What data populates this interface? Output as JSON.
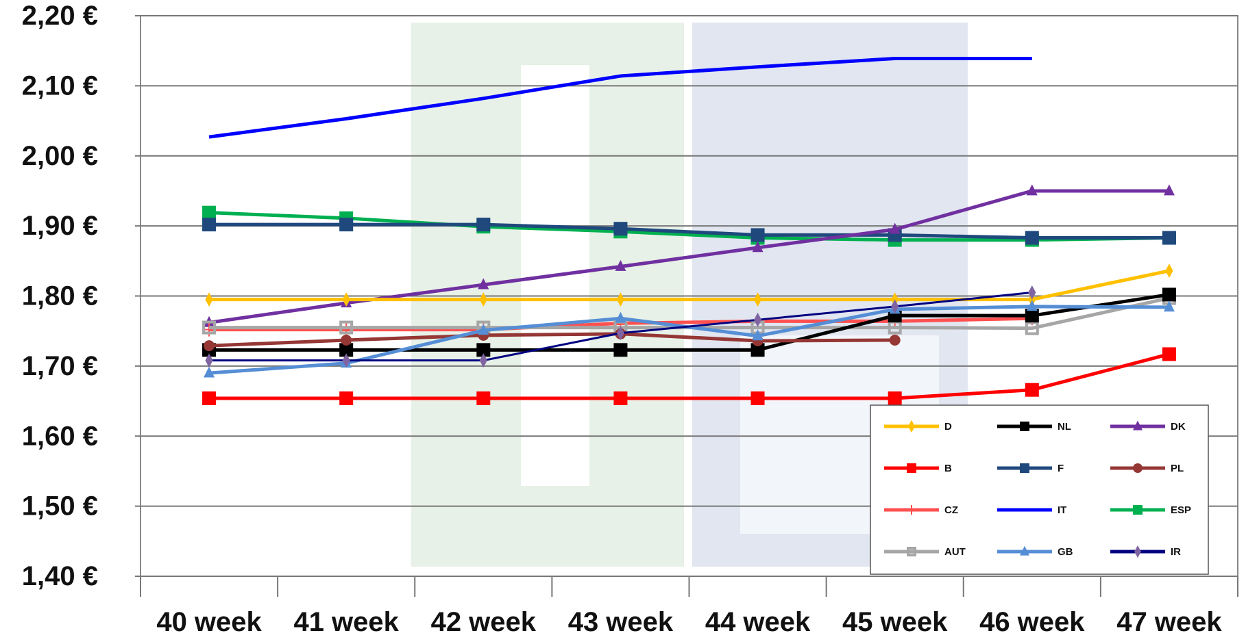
{
  "chart_data": {
    "type": "line",
    "categories": [
      "40 week",
      "41 week",
      "42 week",
      "43 week",
      "44 week",
      "45 week",
      "46 week",
      "47 week"
    ],
    "ylim": [
      1.4,
      2.2
    ],
    "yticks": [
      "1,40 €",
      "1,50 €",
      "1,60 €",
      "1,70 €",
      "1,80 €",
      "1,90 €",
      "2,00 €",
      "2,10 €",
      "2,20 €"
    ],
    "ytick_values": [
      1.4,
      1.5,
      1.6,
      1.7,
      1.8,
      1.9,
      2.0,
      2.1,
      2.2
    ],
    "grid": true,
    "legend_position": "bottom-right",
    "series": [
      {
        "name": "D",
        "color": "#FFC000",
        "marker": "diamond",
        "values": [
          1.795,
          1.795,
          1.795,
          1.795,
          1.795,
          1.795,
          1.795,
          1.836
        ]
      },
      {
        "name": "NL",
        "color": "#000000",
        "marker": "square",
        "values": [
          1.723,
          1.723,
          1.723,
          1.723,
          1.723,
          1.772,
          1.772,
          1.802
        ]
      },
      {
        "name": "DK",
        "color": "#7030A0",
        "marker": "triangle",
        "values": [
          1.762,
          1.79,
          1.816,
          1.842,
          1.869,
          1.895,
          1.95,
          1.95
        ]
      },
      {
        "name": "B",
        "color": "#FF0000",
        "marker": "square",
        "values": [
          1.654,
          1.654,
          1.654,
          1.654,
          1.654,
          1.654,
          1.666,
          1.717
        ]
      },
      {
        "name": "F",
        "color": "#1F497D",
        "marker": "square",
        "values": [
          1.902,
          1.902,
          1.902,
          1.896,
          1.887,
          1.887,
          1.883,
          1.883
        ]
      },
      {
        "name": "PL",
        "color": "#953735",
        "marker": "circle",
        "values": [
          1.729,
          1.737,
          1.744,
          1.746,
          1.736,
          1.737,
          null,
          null
        ]
      },
      {
        "name": "CZ",
        "color": "#FF5050",
        "marker": "plus",
        "values": [
          1.752,
          1.752,
          1.752,
          1.761,
          1.764,
          1.764,
          1.768,
          null
        ]
      },
      {
        "name": "IT",
        "color": "#0000FF",
        "marker": "none",
        "values": [
          2.027,
          2.053,
          2.082,
          2.114,
          2.127,
          2.139,
          2.139,
          null
        ]
      },
      {
        "name": "ESP",
        "color": "#00B050",
        "marker": "square",
        "values": [
          1.919,
          1.911,
          1.899,
          1.892,
          1.883,
          1.88,
          1.88,
          1.883
        ]
      },
      {
        "name": "AUT",
        "color": "#A6A6A6",
        "marker": "hollow-square",
        "values": [
          1.755,
          1.755,
          1.755,
          1.755,
          1.755,
          1.755,
          1.754,
          1.797
        ]
      },
      {
        "name": "GB",
        "color": "#558ED5",
        "marker": "triangle",
        "values": [
          1.69,
          1.704,
          1.751,
          1.768,
          1.743,
          1.781,
          1.785,
          1.784
        ]
      },
      {
        "name": "IR",
        "color": "#000080",
        "marker": "diamond",
        "marker_color": "#8064A2",
        "values": [
          1.708,
          1.708,
          1.708,
          1.747,
          1.766,
          1.785,
          1.805,
          null
        ]
      }
    ]
  }
}
